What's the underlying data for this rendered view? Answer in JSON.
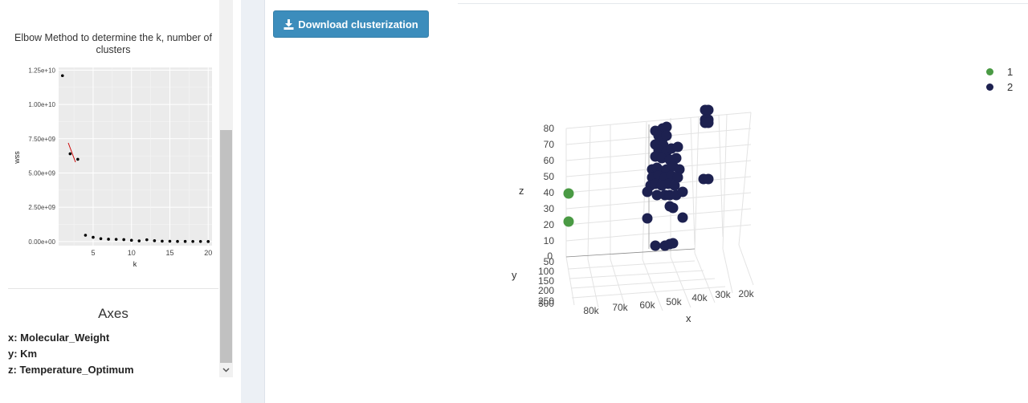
{
  "sidebar": {
    "elbow_title": "Elbow Method to determine the k, number of clusters",
    "axes_heading": "Axes",
    "axes": [
      {
        "label": "x: Molecular_Weight"
      },
      {
        "label": "y: Km"
      },
      {
        "label": "z: Temperature_Optimum"
      }
    ]
  },
  "toolbar": {
    "download_label": "Download clusterization"
  },
  "legend": [
    {
      "label": "1",
      "color": "#4a9a44"
    },
    {
      "label": "2",
      "color": "#1d2150"
    }
  ],
  "plot3d": {
    "z_label": "z",
    "y_label": "y",
    "x_label": "x",
    "z_ticks": [
      "80",
      "70",
      "60",
      "50",
      "40",
      "30",
      "20",
      "10",
      "0"
    ],
    "y_ticks": [
      "50",
      "100",
      "150",
      "200",
      "250",
      "300"
    ],
    "x_ticks": [
      "80k",
      "70k",
      "60k",
      "50k",
      "40k",
      "30k",
      "20k"
    ]
  },
  "chart_data": {
    "type": "scatter",
    "title": "Elbow Method to determine the k, number of clusters",
    "xlabel": "k",
    "ylabel": "wss",
    "x_ticks": [
      "5",
      "10",
      "15",
      "20"
    ],
    "y_ticks": [
      "0.00e+00",
      "2.50e+09",
      "5.00e+09",
      "7.50e+09",
      "1.00e+10",
      "1.25e+10"
    ],
    "xlim": [
      0.5,
      20.5
    ],
    "ylim": [
      -300000000.0,
      12700000000.0
    ],
    "x": [
      1,
      2,
      3,
      4,
      5,
      6,
      7,
      8,
      9,
      10,
      11,
      12,
      13,
      14,
      15,
      16,
      17,
      18,
      19,
      20
    ],
    "y": [
      12100000000.0,
      6400000000.0,
      6000000000.0,
      460000000.0,
      310000000.0,
      210000000.0,
      170000000.0,
      160000000.0,
      140000000.0,
      90000000.0,
      50000000.0,
      130000000.0,
      60000000.0,
      30000000.0,
      20000000.0,
      10000000.0,
      10000000.0,
      5000000.0,
      4000000.0,
      3000000.0
    ],
    "grid": true,
    "series": [
      {
        "values": [
          12100000000.0,
          6400000000.0,
          6000000000.0,
          460000000.0,
          310000000.0,
          210000000.0,
          170000000.0,
          160000000.0,
          140000000.0,
          90000000.0,
          50000000.0,
          130000000.0,
          60000000.0,
          30000000.0,
          20000000.0,
          10000000.0,
          10000000.0,
          5000000.0,
          4000000.0,
          3000000.0
        ]
      }
    ]
  }
}
